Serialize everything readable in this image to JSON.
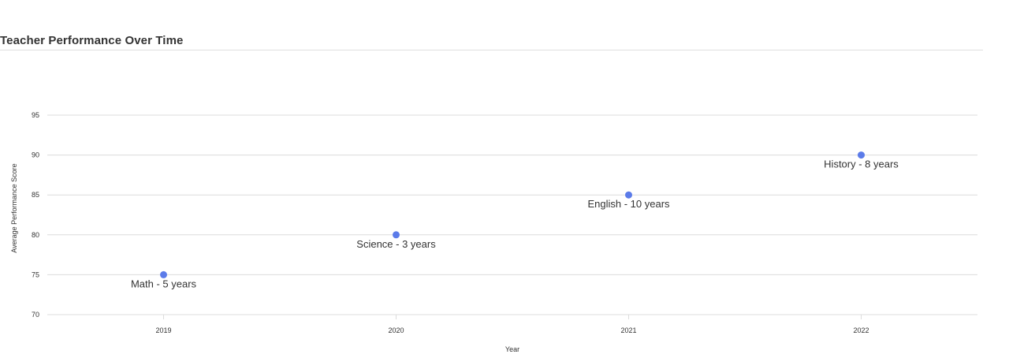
{
  "chart_data": {
    "type": "scatter",
    "title": "Teacher Performance Over Time",
    "xlabel": "Year",
    "ylabel": "Average Performance Score",
    "categories": [
      "2019",
      "2020",
      "2021",
      "2022"
    ],
    "ylim": [
      70,
      95
    ],
    "yticks": [
      70,
      75,
      80,
      85,
      90,
      95
    ],
    "grid": true,
    "legend": "none",
    "colors": {
      "point": "#5b7be9",
      "grid": "#dcdcdc"
    },
    "points": [
      {
        "x": "2019",
        "y": 75,
        "label": "Math - 5 years"
      },
      {
        "x": "2020",
        "y": 80,
        "label": "Science - 3 years"
      },
      {
        "x": "2021",
        "y": 85,
        "label": "English - 10 years"
      },
      {
        "x": "2022",
        "y": 90,
        "label": "History - 8 years"
      }
    ]
  }
}
